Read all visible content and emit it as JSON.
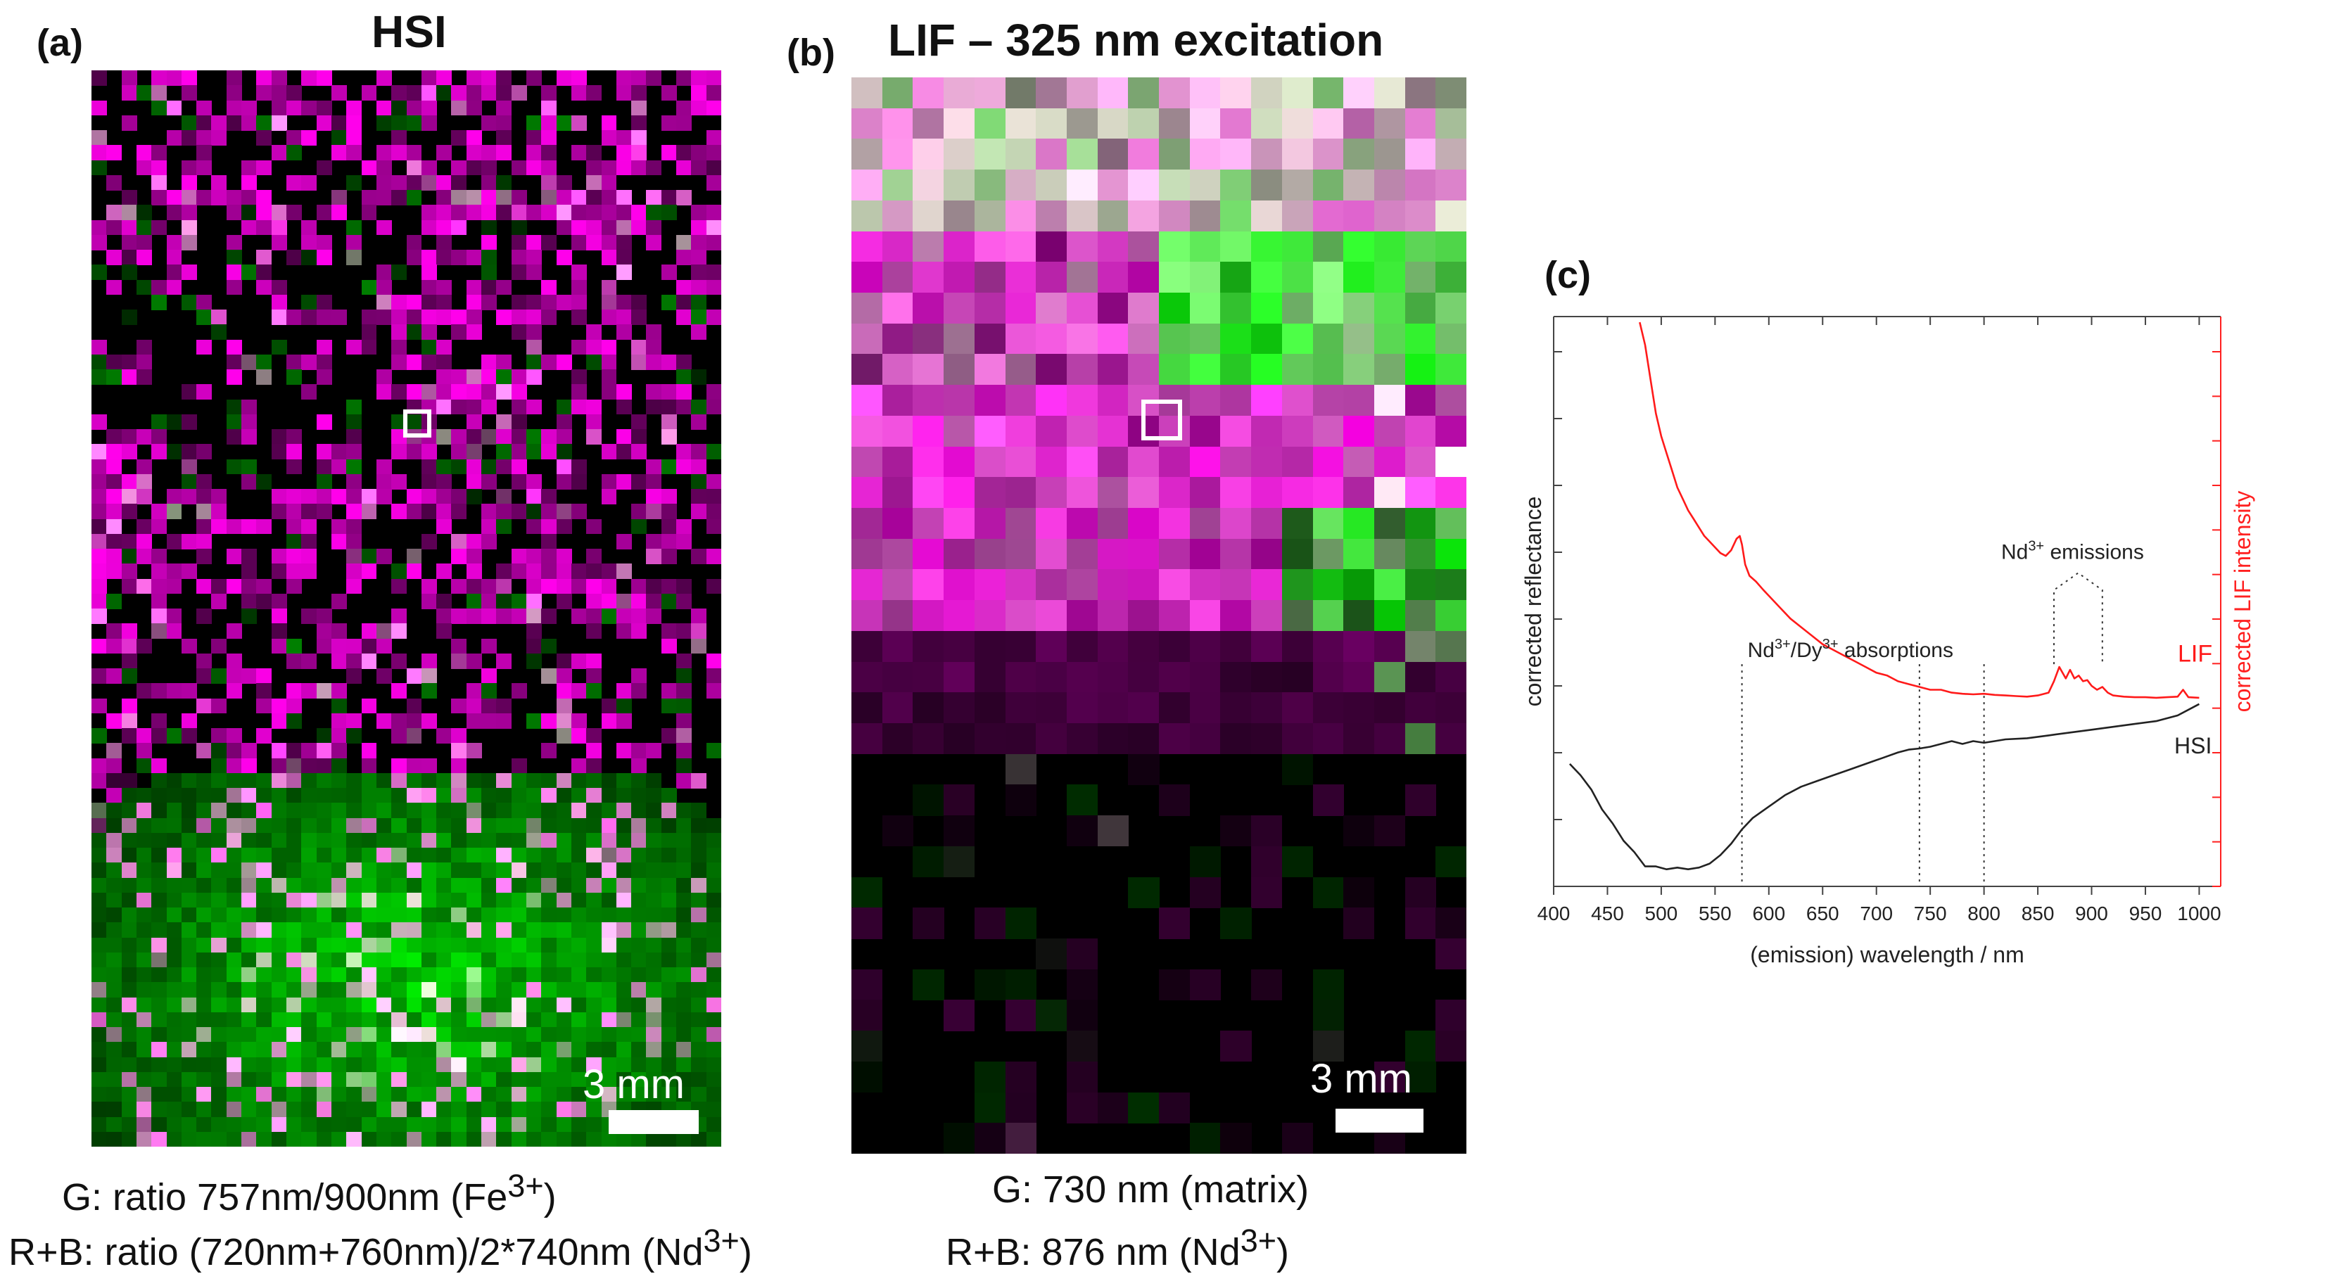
{
  "panels": {
    "a": {
      "label": "(a)",
      "title": "HSI",
      "scale_label": "3 mm",
      "caption": [
        {
          "prefix": "G: ratio 757nm/900nm (Fe",
          "sup": "3+",
          "suffix": ")"
        },
        {
          "prefix": "R+B: ratio (720nm+760nm)/2*740nm (Nd",
          "sup": "3+",
          "suffix": ")"
        }
      ],
      "grid": {
        "cols": 42,
        "rows": 72
      }
    },
    "b": {
      "label": "(b)",
      "title": "LIF – 325 nm excitation",
      "scale_label": "3 mm",
      "caption": [
        {
          "prefix": "G: 730 nm (matrix)",
          "sup": "",
          "suffix": ""
        },
        {
          "prefix": "R+B: 876 nm (Nd",
          "sup": "3+",
          "suffix": ")"
        }
      ],
      "grid": {
        "cols": 20,
        "rows": 35
      }
    },
    "c": {
      "label": "(c)"
    }
  },
  "colors": {
    "magenta": "#ff33e0",
    "green": "#19ff2e",
    "lif_line": "#ff1a1a",
    "hsi_line": "#222222",
    "right_axis": "#ff2020"
  },
  "chart_data": {
    "type": "line",
    "title": "",
    "xlabel": "(emission) wavelength / nm",
    "ylabel_left": "corrected reflectance",
    "ylabel_right": "corrected LIF intensity",
    "xlim": [
      400,
      1020
    ],
    "ylim": [
      0,
      1
    ],
    "x_ticks": [
      400,
      450,
      500,
      550,
      600,
      650,
      700,
      750,
      800,
      850,
      900,
      950,
      1000
    ],
    "series": [
      {
        "name": "LIF",
        "label": "LIF",
        "x": [
          480,
          485,
          490,
          495,
          500,
          505,
          510,
          515,
          520,
          525,
          530,
          535,
          540,
          545,
          550,
          555,
          560,
          565,
          570,
          573,
          575,
          578,
          582,
          588,
          595,
          600,
          610,
          620,
          630,
          640,
          650,
          660,
          670,
          680,
          690,
          700,
          710,
          720,
          730,
          740,
          750,
          760,
          770,
          780,
          790,
          800,
          810,
          820,
          830,
          840,
          850,
          860,
          865,
          870,
          873,
          876,
          880,
          884,
          888,
          892,
          896,
          900,
          905,
          910,
          915,
          920,
          930,
          940,
          950,
          960,
          970,
          980,
          985,
          990,
          1000
        ],
        "y": [
          0.99,
          0.95,
          0.89,
          0.83,
          0.79,
          0.76,
          0.73,
          0.7,
          0.68,
          0.66,
          0.645,
          0.63,
          0.615,
          0.605,
          0.595,
          0.585,
          0.58,
          0.59,
          0.61,
          0.615,
          0.6,
          0.565,
          0.545,
          0.535,
          0.52,
          0.51,
          0.49,
          0.47,
          0.455,
          0.44,
          0.425,
          0.415,
          0.405,
          0.395,
          0.385,
          0.375,
          0.37,
          0.36,
          0.355,
          0.35,
          0.345,
          0.345,
          0.34,
          0.338,
          0.337,
          0.338,
          0.336,
          0.335,
          0.334,
          0.333,
          0.335,
          0.34,
          0.36,
          0.385,
          0.375,
          0.365,
          0.38,
          0.365,
          0.37,
          0.36,
          0.362,
          0.352,
          0.345,
          0.35,
          0.34,
          0.335,
          0.333,
          0.332,
          0.332,
          0.331,
          0.332,
          0.333,
          0.345,
          0.332,
          0.331
        ]
      },
      {
        "name": "HSI",
        "label": "HSI",
        "x": [
          415,
          425,
          435,
          445,
          455,
          465,
          475,
          485,
          495,
          505,
          515,
          525,
          535,
          545,
          555,
          565,
          575,
          585,
          600,
          615,
          630,
          645,
          660,
          675,
          690,
          705,
          720,
          730,
          740,
          750,
          760,
          770,
          780,
          790,
          800,
          810,
          820,
          840,
          860,
          880,
          900,
          920,
          940,
          960,
          980,
          1000
        ],
        "y": [
          0.215,
          0.195,
          0.17,
          0.135,
          0.11,
          0.08,
          0.06,
          0.035,
          0.035,
          0.03,
          0.033,
          0.03,
          0.033,
          0.04,
          0.055,
          0.075,
          0.1,
          0.12,
          0.14,
          0.16,
          0.175,
          0.185,
          0.195,
          0.205,
          0.215,
          0.225,
          0.235,
          0.24,
          0.242,
          0.245,
          0.25,
          0.255,
          0.25,
          0.255,
          0.252,
          0.255,
          0.258,
          0.26,
          0.265,
          0.27,
          0.275,
          0.28,
          0.285,
          0.29,
          0.3,
          0.32
        ]
      }
    ],
    "annotations": [
      {
        "text_base": "Nd",
        "text_sup": "3+",
        "text_rest": " emissions",
        "points_nm": [
          865,
          910
        ]
      },
      {
        "text_base": "Nd",
        "text_sup": "3+",
        "text_mid": "/Dy",
        "text_sup2": "3+",
        "text_rest": " absorptions",
        "points_nm": [
          575,
          740,
          800
        ]
      }
    ]
  }
}
